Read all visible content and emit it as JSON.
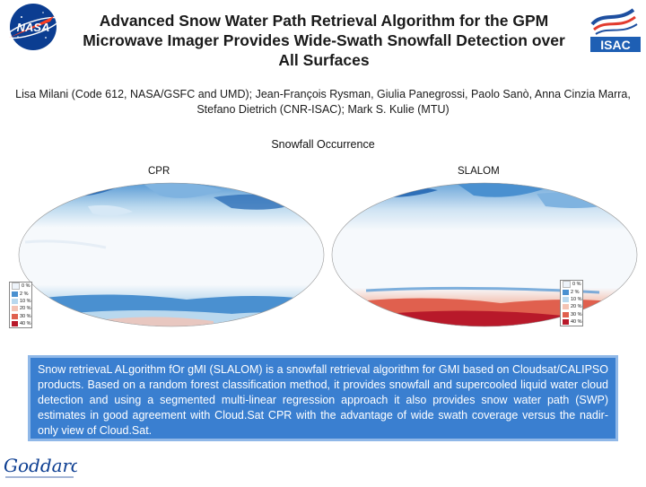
{
  "header": {
    "title": "Advanced Snow Water Path Retrieval Algorithm for the GPM Microwave Imager Provides Wide-Swath Snowfall Detection over All Surfaces",
    "authors": "Lisa Milani (Code 612, NASA/GSFC and UMD); Jean-François Rysman, Giulia Panegrossi, Paolo Sanò, Anna Cinzia Marra, Stefano Dietrich (CNR-ISAC); Mark S. Kulie (MTU)"
  },
  "logos": {
    "nasa": "NASA",
    "isac": "ISAC",
    "goddard": "Goddard"
  },
  "figure": {
    "section_title": "Snowfall Occurrence",
    "maps": [
      {
        "label": "CPR"
      },
      {
        "label": "SLALOM"
      }
    ],
    "legend": [
      {
        "label": "0 %",
        "color": "#eef4fb"
      },
      {
        "label": "2 %",
        "color": "#4a90d0"
      },
      {
        "label": "10 %",
        "color": "#b9d8ee"
      },
      {
        "label": "20 %",
        "color": "#f4c3b4"
      },
      {
        "label": "30 %",
        "color": "#e0604e"
      },
      {
        "label": "40 %",
        "color": "#b8192a"
      }
    ]
  },
  "description": "Snow retrievaL ALgorithm fOr gMI (SLALOM) is a snowfall retrieval algorithm for GMI based on Cloudsat/CALIPSO products. Based on a random forest classification method, it provides snowfall and supercooled liquid water cloud detection and using a segmented multi-linear regression approach it also provides snow water path (SWP) estimates in good agreement with Cloud.Sat CPR with the advantage of wide swath coverage versus the nadir-only view of Cloud.Sat."
}
